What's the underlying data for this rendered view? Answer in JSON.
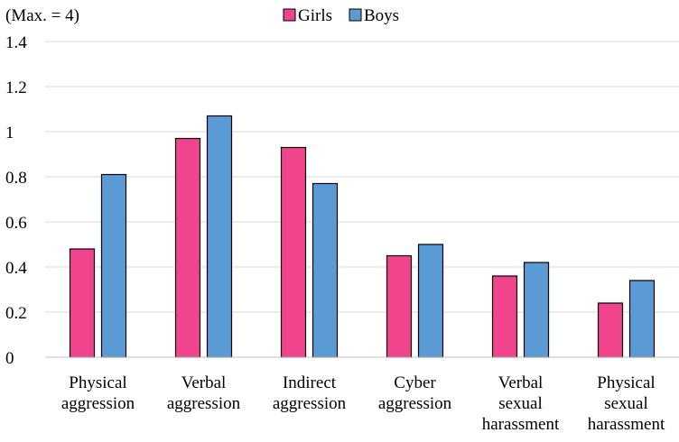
{
  "chart_data": {
    "type": "bar",
    "title": "",
    "unit_note": "(Max. = 4)",
    "xlabel": "",
    "ylabel": "",
    "ylim": [
      0,
      1.4
    ],
    "yticks": [
      "0",
      "0.2",
      "0.4",
      "0.6",
      "0.8",
      "1",
      "1.2",
      "1.4"
    ],
    "ytick_values": [
      0,
      0.2,
      0.4,
      0.6,
      0.8,
      1.0,
      1.2,
      1.4
    ],
    "grid": "horizontal",
    "legend_position": "top",
    "categories": [
      [
        "Physical",
        "aggression"
      ],
      [
        "Verbal",
        "aggression"
      ],
      [
        "Indirect",
        "aggression"
      ],
      [
        "Cyber",
        "aggression"
      ],
      [
        "Verbal",
        "sexual",
        "harassment"
      ],
      [
        "Physical",
        "sexual",
        "harassment"
      ]
    ],
    "series": [
      {
        "name": "Girls",
        "color": "#F0458D",
        "values": [
          0.48,
          0.97,
          0.93,
          0.45,
          0.36,
          0.24
        ]
      },
      {
        "name": "Boys",
        "color": "#5B9BD5",
        "values": [
          0.81,
          1.07,
          0.77,
          0.5,
          0.42,
          0.34
        ]
      }
    ]
  }
}
